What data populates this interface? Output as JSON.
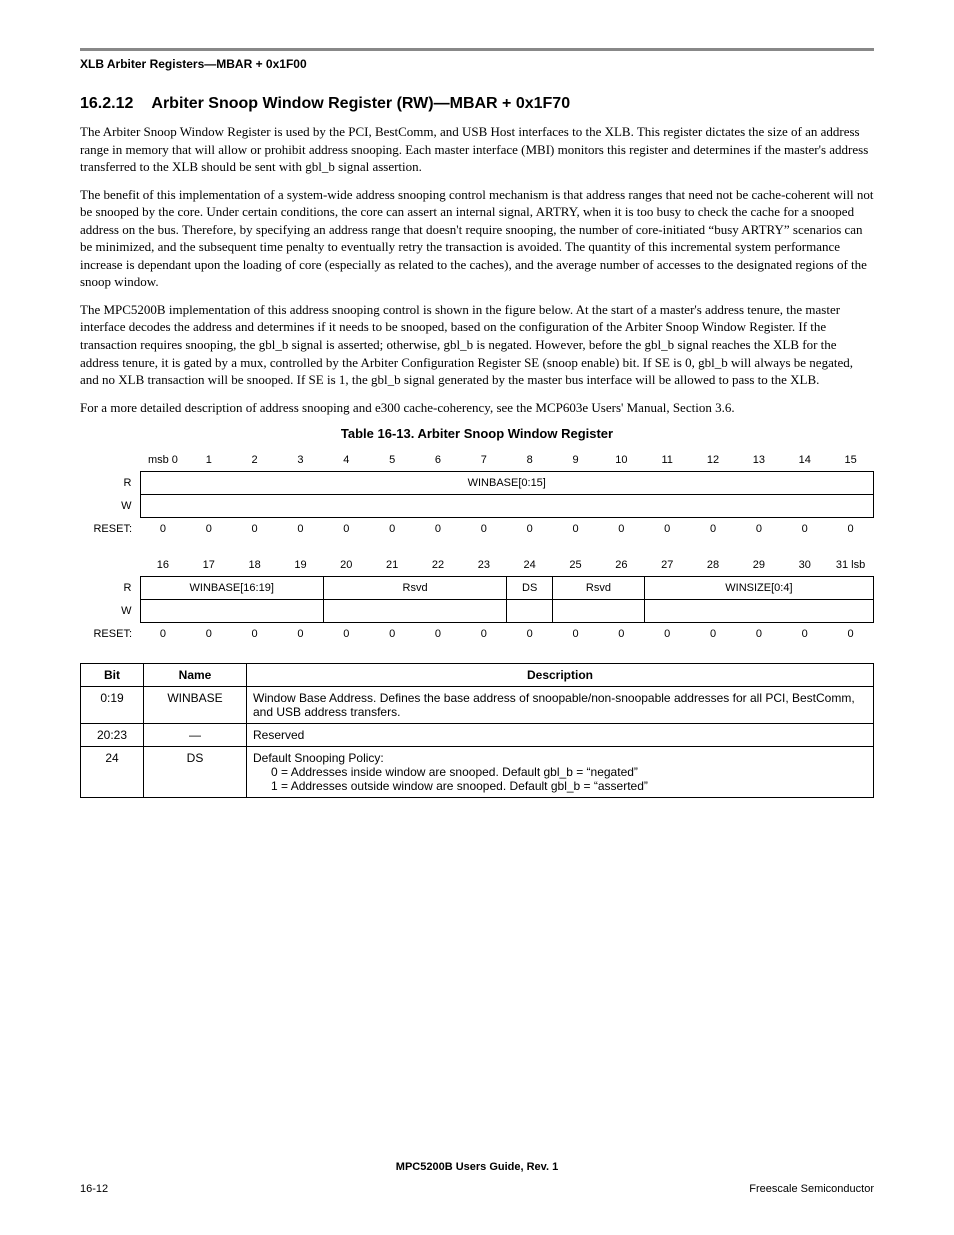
{
  "running_header": "XLB Arbiter Registers—MBAR + 0x1F00",
  "section": {
    "number": "16.2.12",
    "title": "Arbiter Snoop Window Register (RW)—MBAR + 0x1F70"
  },
  "paragraphs": [
    "The Arbiter Snoop Window Register is used by the PCI, BestComm, and USB Host interfaces to the XLB. This register dictates the size of an address range in memory that will allow or prohibit address snooping. Each master interface (MBI) monitors this register and determines if the master's address transferred to the XLB should be sent with gbl_b signal assertion.",
    "The benefit of this implementation of a system-wide address snooping control mechanism is that address ranges that need not be cache-coherent will not be snooped by the core. Under certain conditions, the core can assert an internal signal, ARTRY, when it is too busy to check the cache for a snooped address on the bus. Therefore, by specifying an address range that doesn't require snooping, the number of core-initiated “busy ARTRY” scenarios can be minimized, and the subsequent time penalty to eventually retry the transaction is avoided. The quantity of this incremental system performance increase is dependant upon the loading of core (especially as related to the caches), and the average number of accesses to the designated regions of the snoop window.",
    "The MPC5200B implementation of this address snooping control is shown in the figure below. At the start of a master's address tenure, the master interface decodes the address and determines if it needs to be snooped, based on the configuration of the Arbiter Snoop Window Register. If the transaction requires snooping, the gbl_b signal is asserted; otherwise, gbl_b is negated. However, before the gbl_b signal reaches the XLB for the address tenure, it is gated by a mux, controlled by the Arbiter Configuration Register SE (snoop enable) bit. If SE is 0, gbl_b will always be negated, and no XLB transaction will be snooped. If SE is 1, the gbl_b signal generated by the master bus interface will be allowed to pass to the XLB.",
    "For a more detailed description of address snooping and e300 cache-coherency, see the MCP603e Users' Manual, Section 3.6."
  ],
  "table_caption": "Table 16-13. Arbiter Snoop Window Register",
  "bit_diagram": {
    "row1_bits": [
      "msb 0",
      "1",
      "2",
      "3",
      "4",
      "5",
      "6",
      "7",
      "8",
      "9",
      "10",
      "11",
      "12",
      "13",
      "14",
      "15"
    ],
    "row1_field": "WINBASE[0:15]",
    "row1_reset": [
      "0",
      "0",
      "0",
      "0",
      "0",
      "0",
      "0",
      "0",
      "0",
      "0",
      "0",
      "0",
      "0",
      "0",
      "0",
      "0"
    ],
    "row2_bits": [
      "16",
      "17",
      "18",
      "19",
      "20",
      "21",
      "22",
      "23",
      "24",
      "25",
      "26",
      "27",
      "28",
      "29",
      "30",
      "31 lsb"
    ],
    "row2_fields": [
      {
        "label": "WINBASE[16:19]",
        "span": 4
      },
      {
        "label": "Rsvd",
        "span": 4
      },
      {
        "label": "DS",
        "span": 1
      },
      {
        "label": "Rsvd",
        "span": 2
      },
      {
        "label": "WINSIZE[0:4]",
        "span": 5
      }
    ],
    "row2_reset": [
      "0",
      "0",
      "0",
      "0",
      "0",
      "0",
      "0",
      "0",
      "0",
      "0",
      "0",
      "0",
      "0",
      "0",
      "0",
      "0"
    ],
    "labels": {
      "R": "R",
      "W": "W",
      "RESET": "RESET:"
    }
  },
  "desc_table": {
    "headers": {
      "bit": "Bit",
      "name": "Name",
      "desc": "Description"
    },
    "rows": [
      {
        "bit": "0:19",
        "name": "WINBASE",
        "desc_lines": [
          "Window Base Address. Defines the base address of snoopable/non-snoopable addresses for all PCI, BestComm, and USB address transfers."
        ]
      },
      {
        "bit": "20:23",
        "name": "—",
        "desc_lines": [
          "Reserved"
        ]
      },
      {
        "bit": "24",
        "name": "DS",
        "desc_lines": [
          "Default Snooping Policy:",
          "0 = Addresses inside window are snooped. Default gbl_b = “negated”",
          "1 = Addresses outside window are snooped. Default gbl_b = “asserted”"
        ]
      }
    ]
  },
  "footer": {
    "center": "MPC5200B Users Guide, Rev. 1",
    "left": "16-12",
    "right": "Freescale Semiconductor"
  }
}
